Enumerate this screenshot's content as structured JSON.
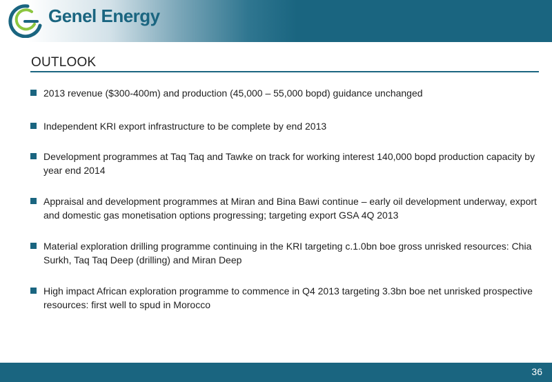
{
  "header": {
    "brand": "Genel Energy"
  },
  "slide": {
    "title": "OUTLOOK",
    "bullets": [
      "2013 revenue ($300-400m) and production (45,000 – 55,000 bopd) guidance unchanged",
      "Independent KRI export infrastructure to be complete by end 2013",
      "Development programmes at Taq Taq and Tawke on track for working interest 140,000 bopd production capacity by year end 2014",
      "Appraisal and development programmes at Miran and Bina Bawi continue – early oil development underway, export and domestic gas monetisation options progressing; targeting export GSA 4Q 2013",
      "Material exploration drilling programme continuing in the KRI targeting c.1.0bn boe gross unrisked resources: Chia Surkh, Taq Taq Deep (drilling) and Miran Deep",
      "High impact African exploration programme to commence in Q4 2013 targeting 3.3bn boe net unrisked prospective resources: first well to spud in Morocco"
    ]
  },
  "footer": {
    "page_number": "36"
  },
  "colors": {
    "brand_teal": "#1a6580",
    "logo_green": "#8cc63f"
  },
  "icons": {
    "logo": "genel-energy-logo-icon",
    "bullet": "square-bullet-icon"
  }
}
